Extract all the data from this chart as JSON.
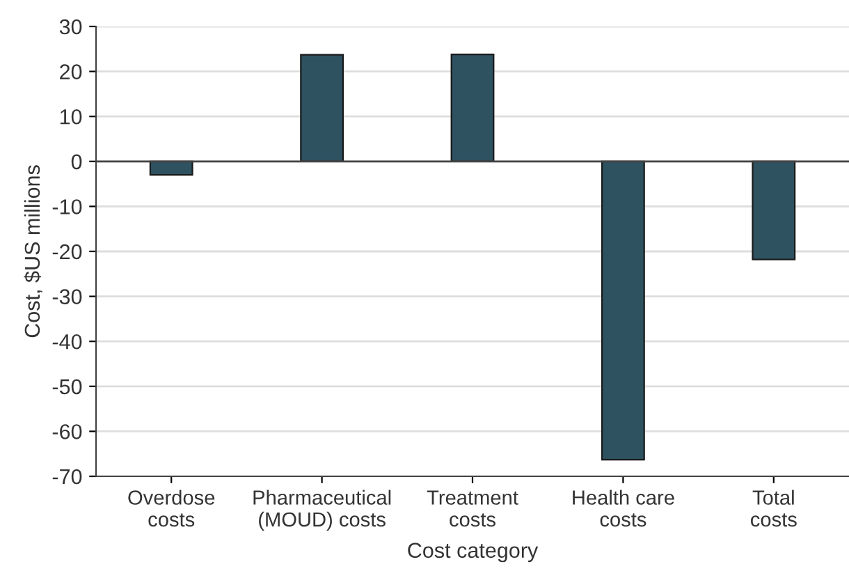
{
  "chart_data": {
    "type": "bar",
    "xlabel": "Cost category",
    "ylabel": "Cost, $US millions",
    "categories": [
      "Overdose\ncosts",
      "Pharmaceutical\n(MOUD) costs",
      "Treatment\ncosts",
      "Health care\ncosts",
      "Total\ncosts"
    ],
    "values": [
      -3,
      23.7,
      23.8,
      -66.3,
      -21.8
    ],
    "color": "#2e5260",
    "ylim": [
      -70,
      30
    ],
    "yticks": [
      -70,
      -60,
      -50,
      -40,
      -30,
      -20,
      -10,
      0,
      10,
      20,
      30
    ],
    "grid": "y"
  }
}
